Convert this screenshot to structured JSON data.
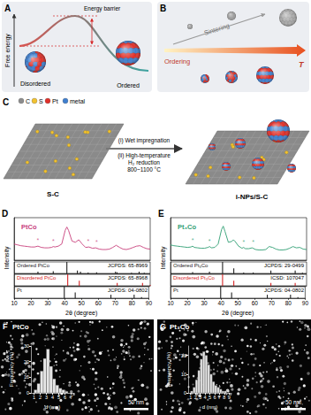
{
  "panels": {
    "A": {
      "label": "A",
      "y_axis": "Free energy",
      "barrier": "Energy barrier",
      "start": "Disordered",
      "end": "Ordered"
    },
    "B": {
      "label": "B",
      "upper": "Sintering",
      "lower": "Ordering",
      "axis": "T"
    },
    "C": {
      "label": "C",
      "legend": [
        {
          "text": "C",
          "color": "#8c8c8c"
        },
        {
          "text": "S",
          "color": "#f2c230"
        },
        {
          "text": "Pt",
          "color": "#e0302a"
        },
        {
          "text": "metal",
          "color": "#3f7fcf"
        }
      ],
      "left": "S-C",
      "right": "i-NPs/S-C",
      "step1": "(i) Wet impregnation",
      "step2": [
        "(ii) High-temperature",
        "H₂ reduction",
        "800~1100 °C"
      ]
    },
    "F": {
      "label": "F",
      "sample": "PtCo",
      "scale_bar": "50 nm"
    },
    "G": {
      "label": "G",
      "sample": "Pt₃Co",
      "scale_bar": "50 nm"
    }
  },
  "chart_data": [
    {
      "type": "line",
      "panel_label": "D",
      "title": "PtCo",
      "color": "#c8407c",
      "x_label": "2θ (degree)",
      "y_label": "Intensity",
      "xlim": [
        10,
        90
      ],
      "xticks": [
        10,
        20,
        30,
        40,
        50,
        60,
        70,
        80,
        90
      ],
      "ylim": [
        0,
        100
      ],
      "tick_labels": "x",
      "grid": false,
      "x": [
        10,
        12,
        14,
        16,
        18,
        20,
        22,
        24,
        26,
        28,
        30,
        32,
        33,
        34,
        36,
        38,
        40,
        41,
        42,
        44,
        46,
        48,
        50,
        52,
        54,
        56,
        58,
        60,
        62,
        64,
        66,
        68,
        70,
        72,
        74,
        76,
        78,
        80,
        82,
        84,
        86,
        88,
        90
      ],
      "values": [
        38,
        36,
        34,
        33,
        32,
        31,
        31,
        33,
        30,
        29,
        29,
        30,
        32,
        31,
        33,
        38,
        70,
        78,
        70,
        45,
        42,
        48,
        38,
        30,
        31,
        28,
        29,
        26,
        25,
        25,
        26,
        30,
        35,
        30,
        26,
        25,
        27,
        30,
        33,
        34,
        30,
        27,
        26
      ],
      "annotations": [
        {
          "x": 24,
          "y": 37,
          "text": "*"
        },
        {
          "x": 33,
          "y": 36,
          "text": "*"
        },
        {
          "x": 53.5,
          "y": 35,
          "text": "*"
        },
        {
          "x": 58.5,
          "y": 33,
          "text": "*"
        }
      ],
      "references": [
        {
          "name": "Ordered PtCo",
          "source": "JCPDS: 65-8969",
          "type": "bar",
          "color": "#222222",
          "x": [
            24,
            33,
            41,
            47.2,
            49,
            53.5,
            58.5,
            69.6,
            70.5,
            79,
            83.5,
            86.5
          ],
          "values": [
            15,
            20,
            100,
            25,
            15,
            8,
            10,
            15,
            10,
            6,
            15,
            6
          ]
        },
        {
          "name": "Disordered PtCo",
          "source": "JCPDS: 65-8968",
          "type": "bar",
          "color": "#d62728",
          "x": [
            41.5,
            48.3,
            70.6,
            85.5,
            90
          ],
          "values": [
            100,
            45,
            25,
            25,
            8
          ]
        },
        {
          "name": "Pt",
          "source": "JCPDS: 04-0802",
          "type": "bar",
          "color": "#222222",
          "x": [
            39.8,
            46.3,
            67.5,
            81.3,
            85.7
          ],
          "values": [
            100,
            50,
            30,
            30,
            10
          ]
        }
      ]
    },
    {
      "type": "line",
      "panel_label": "E",
      "title": "Pt₃Co",
      "color": "#2f9e73",
      "x_label": "2θ (degree)",
      "y_label": "Intensity",
      "xlim": [
        10,
        90
      ],
      "xticks": [
        10,
        20,
        30,
        40,
        50,
        60,
        70,
        80,
        90
      ],
      "ylim": [
        0,
        100
      ],
      "tick_labels": "x",
      "grid": false,
      "x": [
        10,
        12,
        14,
        16,
        18,
        20,
        22,
        23,
        24,
        26,
        28,
        30,
        32,
        33,
        34,
        36,
        38,
        40,
        41,
        42,
        44,
        46,
        47,
        48,
        50,
        52,
        53,
        54,
        56,
        58,
        60,
        62,
        64,
        66,
        68,
        70,
        72,
        74,
        76,
        78,
        80,
        82,
        84,
        86,
        88,
        90
      ],
      "values": [
        36,
        34,
        33,
        32,
        31,
        30,
        31,
        33,
        30,
        29,
        28,
        28,
        30,
        32,
        29,
        30,
        38,
        72,
        80,
        68,
        42,
        44,
        48,
        44,
        33,
        28,
        30,
        27,
        27,
        29,
        25,
        24,
        24,
        25,
        32,
        30,
        26,
        24,
        24,
        25,
        28,
        32,
        29,
        30,
        26,
        25
      ],
      "annotations": [
        {
          "x": 23,
          "y": 37,
          "text": "*"
        },
        {
          "x": 32.9,
          "y": 36,
          "text": "*"
        },
        {
          "x": 53,
          "y": 34,
          "text": "*"
        },
        {
          "x": 58.6,
          "y": 33,
          "text": "*"
        }
      ],
      "references": [
        {
          "name": "Ordered Pt₃Co",
          "source": "JCPDS: 29-0499",
          "type": "bar",
          "color": "#222222",
          "x": [
            23,
            32.9,
            40.6,
            47.2,
            53,
            58.6,
            69,
            83.3,
            87.6
          ],
          "values": [
            12,
            15,
            100,
            45,
            8,
            8,
            25,
            25,
            6
          ]
        },
        {
          "name": "Disordered Pt₃Co",
          "source": "ICSD: 107047",
          "type": "bar",
          "color": "#d62728",
          "x": [
            40.6,
            47.2,
            69,
            83.3
          ],
          "values": [
            100,
            45,
            25,
            25
          ]
        },
        {
          "name": "Pt",
          "source": "JCPDS: 04-0802",
          "type": "bar",
          "color": "#222222",
          "x": [
            39.8,
            46.3,
            67.5,
            81.3,
            85.7
          ],
          "values": [
            100,
            50,
            30,
            30,
            10
          ]
        }
      ]
    },
    {
      "type": "histogram",
      "x_label": "d (nm)",
      "y_label": "Frequency (%)",
      "color": "#e6e6e6",
      "bins": [
        1,
        1.5,
        2,
        2.5,
        3,
        3.5,
        4,
        4.5,
        5,
        5.5,
        6,
        6.5
      ],
      "counts": [
        2,
        6,
        14,
        22,
        28,
        17,
        9,
        5,
        3,
        2,
        1
      ],
      "xlim": [
        0.5,
        7.5
      ],
      "xticks": [
        1,
        2,
        3,
        4,
        5,
        6,
        7
      ],
      "ylim": [
        0,
        30
      ],
      "yticks": [
        0,
        10,
        20,
        30
      ],
      "grid": false
    },
    {
      "type": "histogram",
      "x_label": "d (nm)",
      "y_label": "Frequency (%)",
      "color": "#e6e6e6",
      "bins": [
        1,
        1.5,
        2,
        2.5,
        3,
        3.5,
        4,
        4.5,
        5,
        5.5,
        6,
        6.5,
        7,
        7.5,
        8,
        8.5
      ],
      "counts": [
        1,
        3,
        7,
        12,
        18,
        22,
        20,
        15,
        10,
        6,
        4,
        3,
        2,
        1,
        1
      ],
      "xlim": [
        0.5,
        9.5
      ],
      "xticks": [
        1,
        2,
        3,
        4,
        5,
        6,
        7,
        8,
        9
      ],
      "ylim": [
        0,
        25
      ],
      "yticks": [
        0,
        10,
        20
      ],
      "grid": false
    }
  ]
}
